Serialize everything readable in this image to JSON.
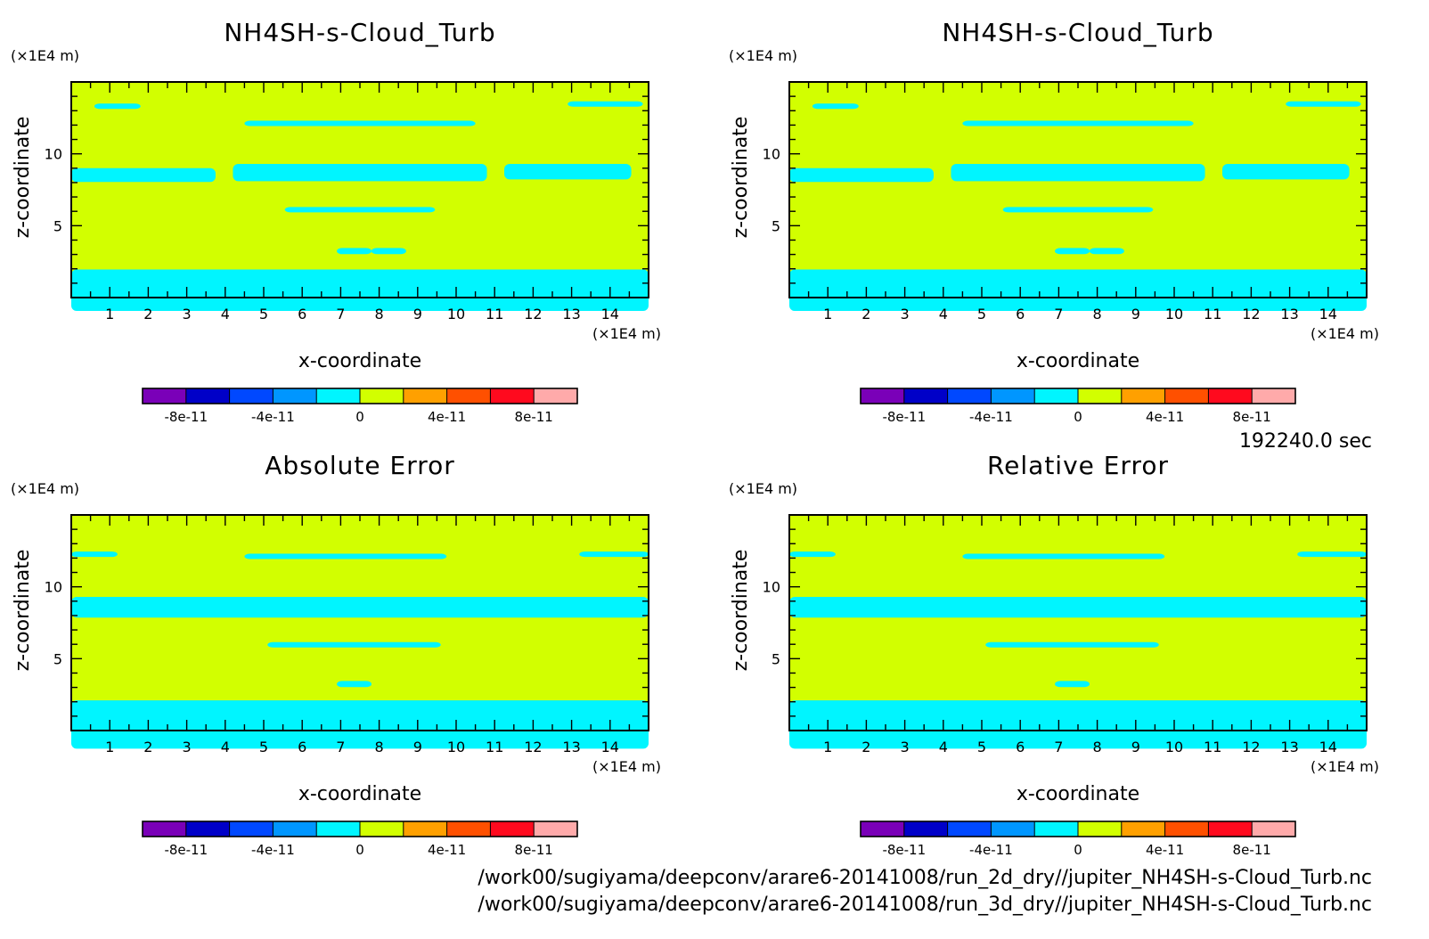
{
  "figure": {
    "time_label": "192240.0 sec",
    "files": [
      "/work00/sugiyama/deepconv/arare6-20141008/run_2d_dry//jupiter_NH4SH-s-Cloud_Turb.nc",
      "/work00/sugiyama/deepconv/arare6-20141008/run_3d_dry//jupiter_NH4SH-s-Cloud_Turb.nc"
    ],
    "colors": {
      "field": "#d2ff00",
      "anomaly": "#00f5ff"
    }
  },
  "chart_data": [
    {
      "type": "heatmap",
      "title": "NH4SH-s-Cloud_Turb",
      "xlabel": "x-coordinate",
      "ylabel": "z-coordinate",
      "x_unit": "(×1E4 m)",
      "y_unit": "(×1E4 m)",
      "xlim": [
        0,
        15
      ],
      "ylim": [
        0,
        15
      ],
      "x_ticks": [
        1,
        2,
        3,
        4,
        5,
        6,
        7,
        8,
        9,
        10,
        11,
        12,
        13,
        14
      ],
      "y_ticks": [
        5,
        10
      ],
      "colorbar": {
        "levels": [
          "#7a00b8",
          "#0000c8",
          "#0048ff",
          "#0096ff",
          "#00f5ff",
          "#d2ff00",
          "#ffa000",
          "#ff5000",
          "#ff0a1e",
          "#ffaaaa"
        ],
        "tick_labels": [
          "-8e-11",
          "-4e-11",
          "0",
          "4e-11",
          "8e-11"
        ]
      }
    },
    {
      "type": "heatmap",
      "title": "NH4SH-s-Cloud_Turb",
      "xlabel": "x-coordinate",
      "ylabel": "z-coordinate",
      "x_unit": "(×1E4 m)",
      "y_unit": "(×1E4 m)",
      "xlim": [
        0,
        15
      ],
      "ylim": [
        0,
        15
      ],
      "x_ticks": [
        1,
        2,
        3,
        4,
        5,
        6,
        7,
        8,
        9,
        10,
        11,
        12,
        13,
        14
      ],
      "y_ticks": [
        5,
        10
      ],
      "colorbar": {
        "levels": [
          "#7a00b8",
          "#0000c8",
          "#0048ff",
          "#0096ff",
          "#00f5ff",
          "#d2ff00",
          "#ffa000",
          "#ff5000",
          "#ff0a1e",
          "#ffaaaa"
        ],
        "tick_labels": [
          "-8e-11",
          "-4e-11",
          "0",
          "4e-11",
          "8e-11"
        ]
      }
    },
    {
      "type": "heatmap",
      "title": "Absolute Error",
      "xlabel": "x-coordinate",
      "ylabel": "z-coordinate",
      "x_unit": "(×1E4 m)",
      "y_unit": "(×1E4 m)",
      "xlim": [
        0,
        15
      ],
      "ylim": [
        0,
        15
      ],
      "x_ticks": [
        1,
        2,
        3,
        4,
        5,
        6,
        7,
        8,
        9,
        10,
        11,
        12,
        13,
        14
      ],
      "y_ticks": [
        5,
        10
      ],
      "colorbar": {
        "levels": [
          "#7a00b8",
          "#0000c8",
          "#0048ff",
          "#0096ff",
          "#00f5ff",
          "#d2ff00",
          "#ffa000",
          "#ff5000",
          "#ff0a1e",
          "#ffaaaa"
        ],
        "tick_labels": [
          "-8e-11",
          "-4e-11",
          "0",
          "4e-11",
          "8e-11"
        ]
      }
    },
    {
      "type": "heatmap",
      "title": "Relative Error",
      "xlabel": "x-coordinate",
      "ylabel": "z-coordinate",
      "x_unit": "(×1E4 m)",
      "y_unit": "(×1E4 m)",
      "xlim": [
        0,
        15
      ],
      "ylim": [
        0,
        15
      ],
      "x_ticks": [
        1,
        2,
        3,
        4,
        5,
        6,
        7,
        8,
        9,
        10,
        11,
        12,
        13,
        14
      ],
      "y_ticks": [
        5,
        10
      ],
      "colorbar": {
        "levels": [
          "#7a00b8",
          "#0000c8",
          "#0048ff",
          "#0096ff",
          "#00f5ff",
          "#d2ff00",
          "#ffa000",
          "#ff5000",
          "#ff0a1e",
          "#ffaaaa"
        ],
        "tick_labels": [
          "-8e-11",
          "-4e-11",
          "0",
          "4e-11",
          "8e-11"
        ]
      }
    }
  ]
}
